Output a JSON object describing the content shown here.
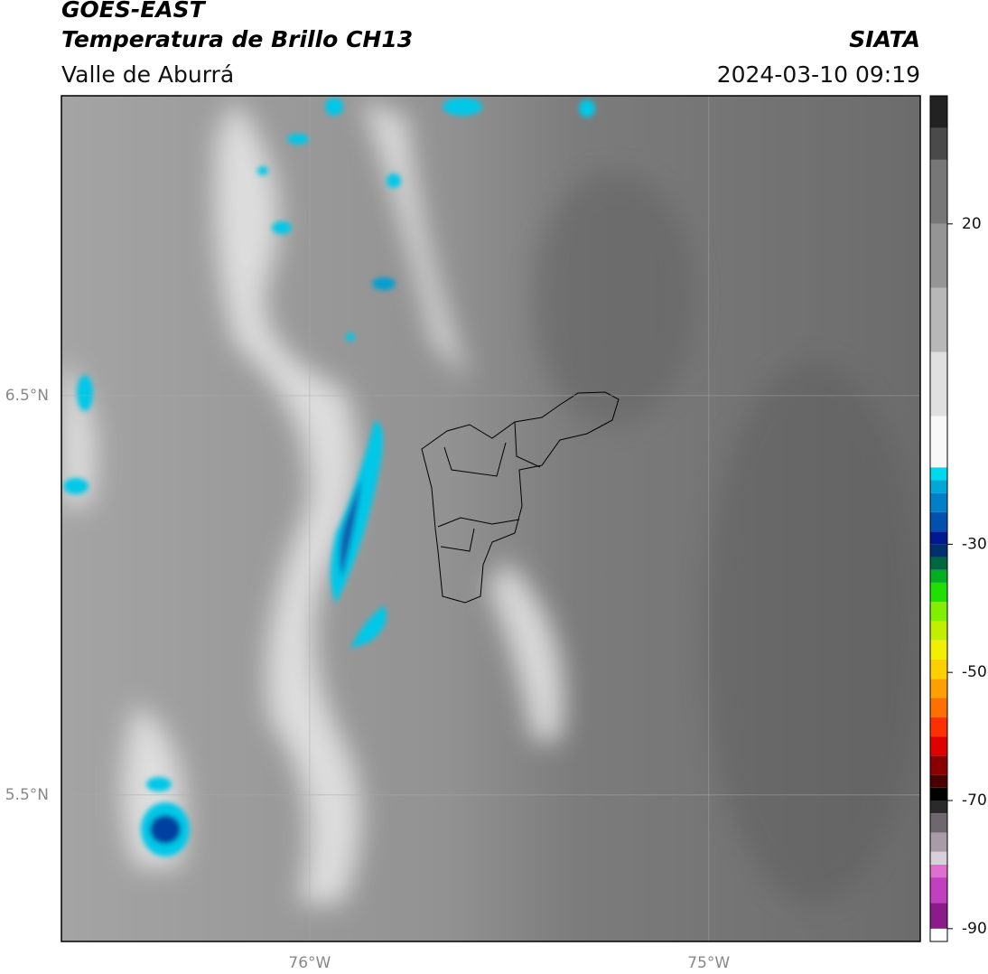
{
  "header": {
    "title": "GOES-EAST",
    "subtitle": "Temperatura de Brillo CH13",
    "region": "Valle de Aburrá",
    "source": "SIATA",
    "timestamp": "2024-03-10 09:19"
  },
  "map": {
    "xlim": [
      -76.622,
      -74.47
    ],
    "ylim": [
      5.133,
      7.251
    ],
    "xticks": [
      {
        "value": -76,
        "label": "76°W"
      },
      {
        "value": -75,
        "label": "75°W"
      }
    ],
    "yticks": [
      {
        "value": 6.5,
        "label": "6.5°N"
      },
      {
        "value": 5.5,
        "label": "5.5°N"
      }
    ]
  },
  "colorbar": {
    "lim": [
      -92,
      40
    ],
    "ticks": [
      20,
      -30,
      -50,
      -70,
      -90
    ],
    "stops": [
      {
        "value": -92,
        "color": "#ffffff"
      },
      {
        "value": -90,
        "color": "#8b1a8b"
      },
      {
        "value": -86,
        "color": "#c040c0"
      },
      {
        "value": -82,
        "color": "#e070d0"
      },
      {
        "value": -80,
        "color": "#d8d0d8"
      },
      {
        "value": -78,
        "color": "#a89ca8"
      },
      {
        "value": -75,
        "color": "#6e686e"
      },
      {
        "value": -72,
        "color": "#2a2a2a"
      },
      {
        "value": -70,
        "color": "#000000"
      },
      {
        "value": -68,
        "color": "#4a0000"
      },
      {
        "value": -66,
        "color": "#8b0000"
      },
      {
        "value": -63,
        "color": "#e00000"
      },
      {
        "value": -60,
        "color": "#ff3000"
      },
      {
        "value": -57,
        "color": "#ff7000"
      },
      {
        "value": -54,
        "color": "#ffa000"
      },
      {
        "value": -51,
        "color": "#ffd000"
      },
      {
        "value": -48,
        "color": "#f0f000"
      },
      {
        "value": -45,
        "color": "#c0f000"
      },
      {
        "value": -42,
        "color": "#80f000"
      },
      {
        "value": -39,
        "color": "#20e000"
      },
      {
        "value": -36,
        "color": "#00b020"
      },
      {
        "value": -34,
        "color": "#006840"
      },
      {
        "value": -32,
        "color": "#003070"
      },
      {
        "value": -30,
        "color": "#001890"
      },
      {
        "value": -28,
        "color": "#0050b0"
      },
      {
        "value": -25,
        "color": "#0080c8"
      },
      {
        "value": -22,
        "color": "#00a8d8"
      },
      {
        "value": -20,
        "color": "#00d8f0"
      },
      {
        "value": -18,
        "color": "#f8f8f8"
      },
      {
        "value": -10,
        "color": "#e0e0e0"
      },
      {
        "value": 0,
        "color": "#b8b8b8"
      },
      {
        "value": 10,
        "color": "#959595"
      },
      {
        "value": 20,
        "color": "#777777"
      },
      {
        "value": 30,
        "color": "#4a4a4a"
      },
      {
        "value": 35,
        "color": "#222222"
      }
    ]
  }
}
